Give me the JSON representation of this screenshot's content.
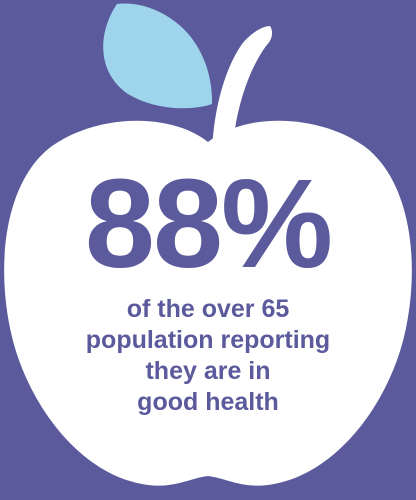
{
  "colors": {
    "background": "#5b5a9c",
    "apple": "#ffffff",
    "leaf": "#9fd5ec",
    "text": "#5b5a9c"
  },
  "icons": {
    "apple": "apple-icon",
    "leaf": "leaf-icon",
    "stem": "stem-icon"
  },
  "stat": {
    "value": "88%",
    "caption_lines": [
      "of the over 65",
      "population reporting",
      "they are in",
      "good health"
    ]
  }
}
